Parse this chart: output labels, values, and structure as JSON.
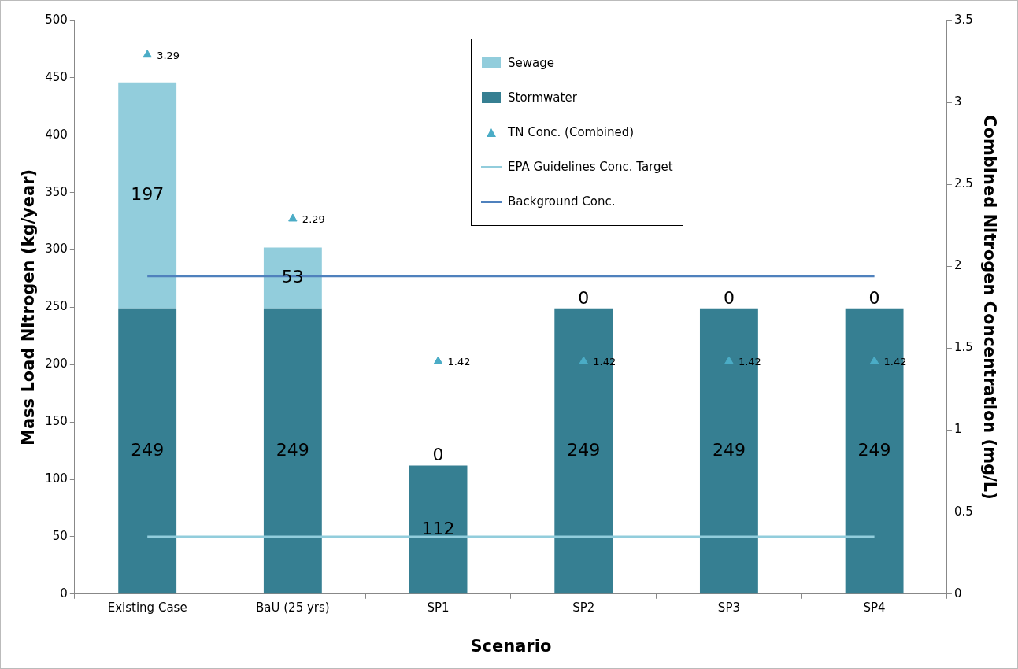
{
  "chart_data": {
    "type": "bar",
    "xlabel": "Scenario",
    "ylabel": "Mass Load Nitrogen (kg/year)",
    "y2label": "Combined Nitrogen Concentration (mg/L)",
    "categories": [
      "Existing Case",
      "BaU (25 yrs)",
      "SP1",
      "SP2",
      "SP3",
      "SP4"
    ],
    "stacked": true,
    "grid": false,
    "legend": "top",
    "ylim": [
      0,
      500
    ],
    "yticks": [
      0,
      50,
      100,
      150,
      200,
      250,
      300,
      350,
      400,
      450,
      500
    ],
    "y2lim": [
      0,
      3.5
    ],
    "y2ticks": [
      0,
      0.5,
      1,
      1.5,
      2,
      2.5,
      3,
      3.5
    ],
    "series": [
      {
        "name": "Stormwater",
        "color": "#367f92",
        "values": [
          249,
          249,
          112,
          249,
          249,
          249
        ],
        "value_labels": [
          "249",
          "249",
          "112",
          "249",
          "249",
          "249"
        ]
      },
      {
        "name": "Sewage",
        "color": "#92cddc",
        "values": [
          197,
          53,
          0,
          0,
          0,
          0
        ],
        "value_labels": [
          "197",
          "53",
          "0",
          "0",
          "0",
          "0"
        ]
      },
      {
        "name": "TN Conc. (Combined)",
        "type": "scatter",
        "axis": "y2",
        "marker": "triangle",
        "color": "#4bacc6",
        "values": [
          3.29,
          2.29,
          1.42,
          1.42,
          1.42,
          1.42
        ],
        "value_labels": [
          "3.29",
          "2.29",
          "1.42",
          "1.42",
          "1.42",
          "1.42"
        ]
      },
      {
        "name": "EPA Guidelines Conc. Target",
        "type": "line",
        "axis": "y2",
        "marker": "none",
        "line_style": "solid",
        "color": "#92cddc",
        "values": [
          0.35,
          0.35,
          0.35,
          0.35,
          0.35,
          0.35
        ]
      },
      {
        "name": "Background Conc.",
        "type": "line",
        "axis": "y2",
        "marker": "none",
        "line_style": "solid",
        "color": "#4f81bd",
        "values": [
          1.94,
          1.94,
          1.94,
          1.94,
          1.94,
          1.94
        ]
      }
    ]
  }
}
